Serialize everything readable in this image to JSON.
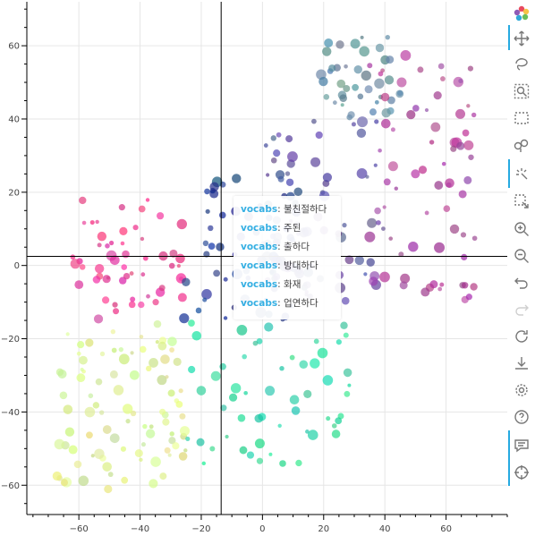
{
  "chart_data": {
    "type": "scatter",
    "title": "",
    "xlabel": "",
    "ylabel": "",
    "xlim": [
      -77,
      80
    ],
    "ylim": [
      -68,
      72
    ],
    "x_ticks": [
      -60,
      -40,
      -20,
      0,
      20,
      40,
      60
    ],
    "y_ticks": [
      -60,
      -40,
      -20,
      0,
      20,
      40,
      60
    ],
    "x_tick_labels": [
      "−60",
      "−40",
      "−20",
      "0",
      "20",
      "40",
      "60"
    ],
    "y_tick_labels": [
      "−60",
      "−40",
      "−20",
      "0",
      "20",
      "40",
      "60"
    ],
    "grid": true,
    "crosshair": {
      "x": -13.5,
      "y": 2.5
    },
    "clusters": [
      {
        "name": "pink",
        "color": "#e8338f",
        "x_range": [
          -62,
          -26
        ],
        "y_range": [
          -15,
          18
        ],
        "n": 55
      },
      {
        "name": "navy",
        "color": "#1f3a8f",
        "x_range": [
          -26,
          15
        ],
        "y_range": [
          -15,
          25
        ],
        "n": 65
      },
      {
        "name": "blue-purple",
        "color": "#5a4fa0",
        "x_range": [
          0,
          40
        ],
        "y_range": [
          -10,
          40
        ],
        "n": 70
      },
      {
        "name": "teal-top",
        "color": "#5a8a9a",
        "x_range": [
          18,
          45
        ],
        "y_range": [
          40,
          64
        ],
        "n": 40
      },
      {
        "name": "magenta",
        "color": "#a8409a",
        "x_range": [
          35,
          70
        ],
        "y_range": [
          -10,
          58
        ],
        "n": 70
      },
      {
        "name": "yellow-green",
        "color": "#d8f08a",
        "x_range": [
          -68,
          -25
        ],
        "y_range": [
          -62,
          -15
        ],
        "n": 90
      },
      {
        "name": "teal-green",
        "color": "#2ad89a",
        "x_range": [
          -26,
          30
        ],
        "y_range": [
          -55,
          -15
        ],
        "n": 55
      }
    ]
  },
  "tooltip": {
    "key": "vocabs",
    "values": [
      "불친절하다",
      "주된",
      "출하다",
      "방대하다",
      "화재",
      "업연하다"
    ]
  },
  "toolbar": {
    "items": [
      "bokeh-logo",
      "pan",
      "lasso-select",
      "box-zoom",
      "box-select",
      "poly-select",
      "tap",
      "point-draw",
      "zoom-in",
      "zoom-out",
      "undo",
      "redo",
      "reset",
      "save",
      "settings",
      "help",
      "hover",
      "crosshair"
    ]
  },
  "colors": {
    "accent": "#26aae1",
    "crosshair": "#000000",
    "grid": "#e6e6e6"
  }
}
